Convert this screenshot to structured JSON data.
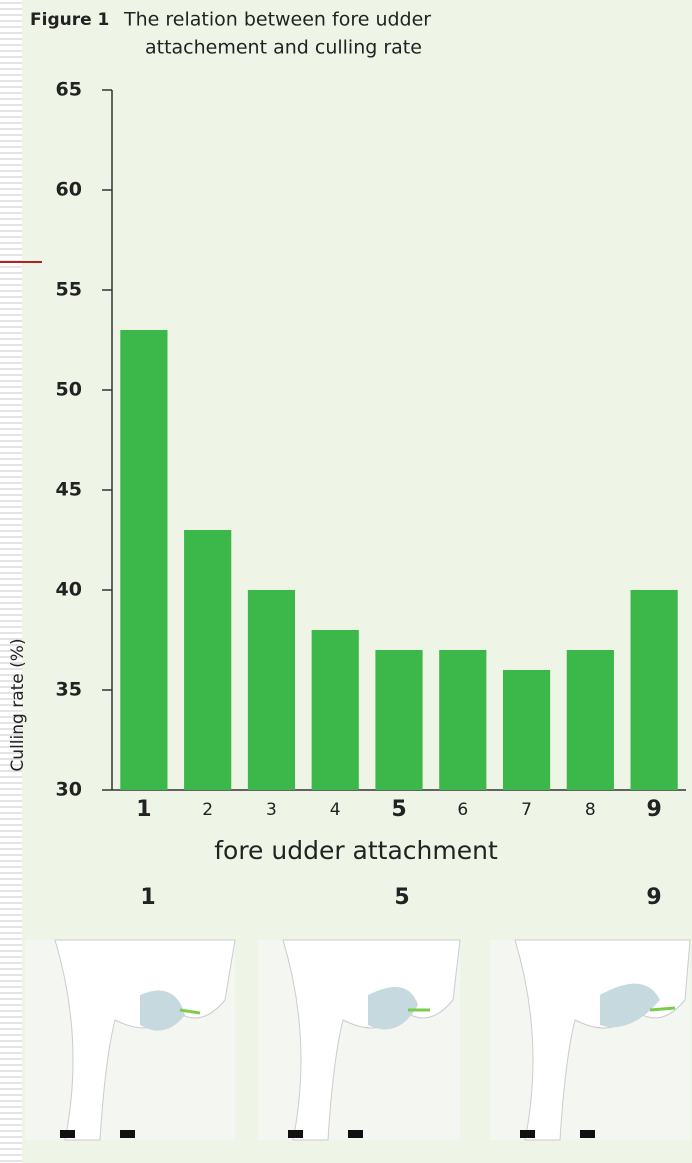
{
  "chart_data": {
    "type": "bar",
    "figure_label": "Figure 1",
    "title": [
      "The relation between fore udder",
      "attachement and culling rate"
    ],
    "ylabel": "Culling rate (%)",
    "xlabel": "fore udder attachment",
    "categories": [
      "1",
      "2",
      "3",
      "4",
      "5",
      "6",
      "7",
      "8",
      "9"
    ],
    "values": [
      53,
      43,
      40,
      38,
      37,
      37,
      36,
      37,
      40
    ],
    "color": "#3cb84a",
    "ylim": [
      30,
      65
    ],
    "yticks": [
      30,
      35,
      40,
      45,
      50,
      55,
      60,
      65
    ],
    "illustration_labels": [
      "1",
      "5",
      "9"
    ]
  }
}
